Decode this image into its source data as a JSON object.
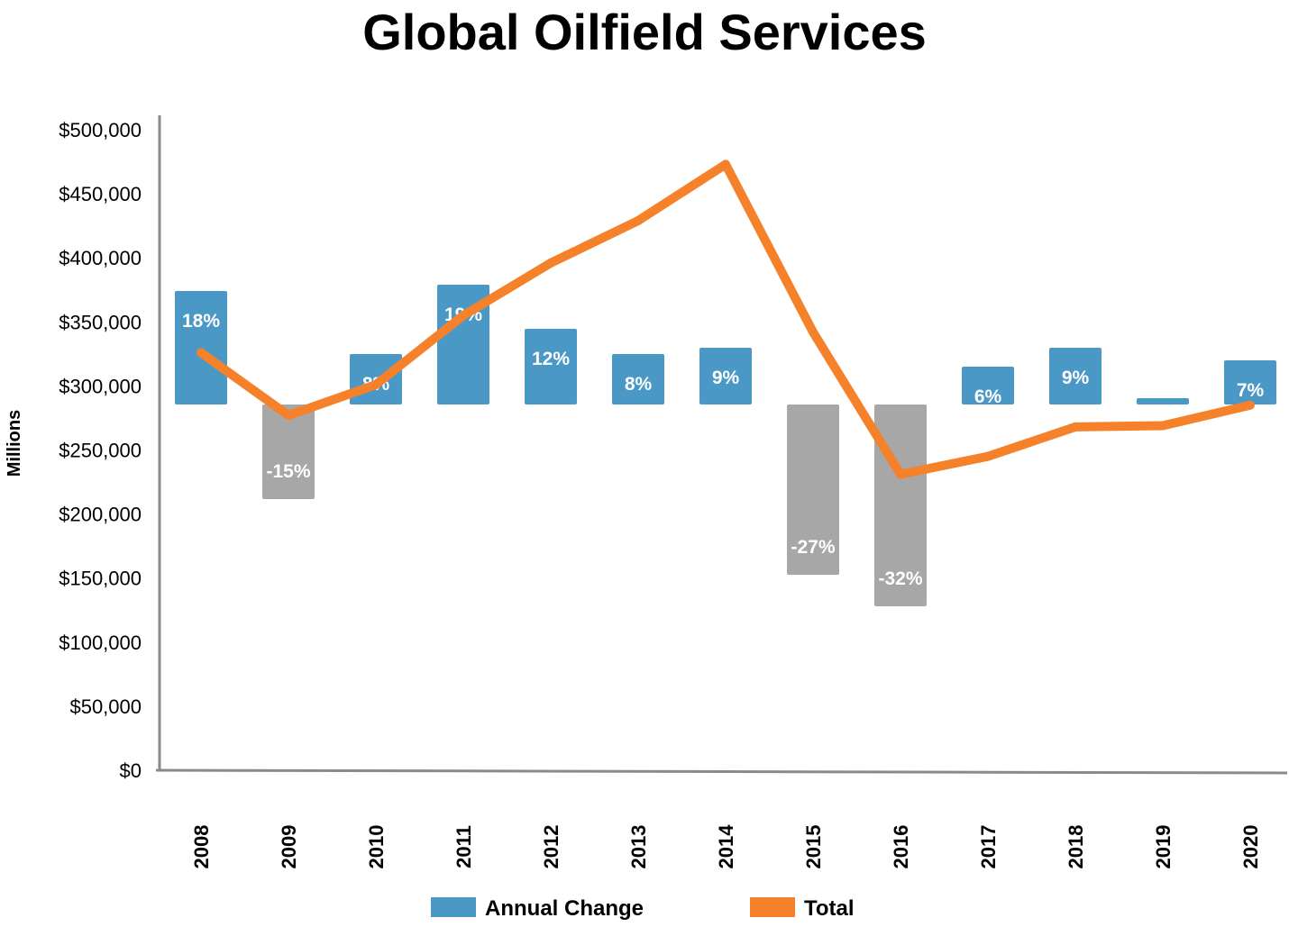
{
  "chart_data": {
    "type": "bar",
    "title": "Global Oilfield Services",
    "xlabel": "",
    "ylabel": "Millions",
    "ylim": [
      0,
      500000
    ],
    "y_ticks": [
      "$0",
      "$50,000",
      "$100,000",
      "$150,000",
      "$200,000",
      "$250,000",
      "$300,000",
      "$350,000",
      "$400,000",
      "$450,000",
      "$500,000"
    ],
    "categories": [
      "2008",
      "2009",
      "2010",
      "2011",
      "2012",
      "2013",
      "2014",
      "2015",
      "2016",
      "2017",
      "2018",
      "2019",
      "2020"
    ],
    "series": [
      {
        "name": "Annual Change",
        "type": "bar",
        "values": [
          18,
          -15,
          8,
          19,
          12,
          8,
          9,
          -27,
          -32,
          6,
          9,
          1,
          7
        ],
        "labels": [
          "18%",
          "-15%",
          "8%",
          "19%",
          "12%",
          "8%",
          "9%",
          "-27%",
          "-32%",
          "6%",
          "9%",
          "",
          "7%"
        ]
      },
      {
        "name": "Total",
        "type": "line",
        "values": [
          326000,
          277000,
          301000,
          355000,
          396000,
          429000,
          473000,
          342000,
          231000,
          245000,
          268000,
          269000,
          285000
        ]
      }
    ],
    "legend_position": "bottom",
    "grid": false,
    "colors": {
      "positive": "#4a98c6",
      "negative": "#a7a7a7",
      "line": "#f5822a"
    }
  }
}
